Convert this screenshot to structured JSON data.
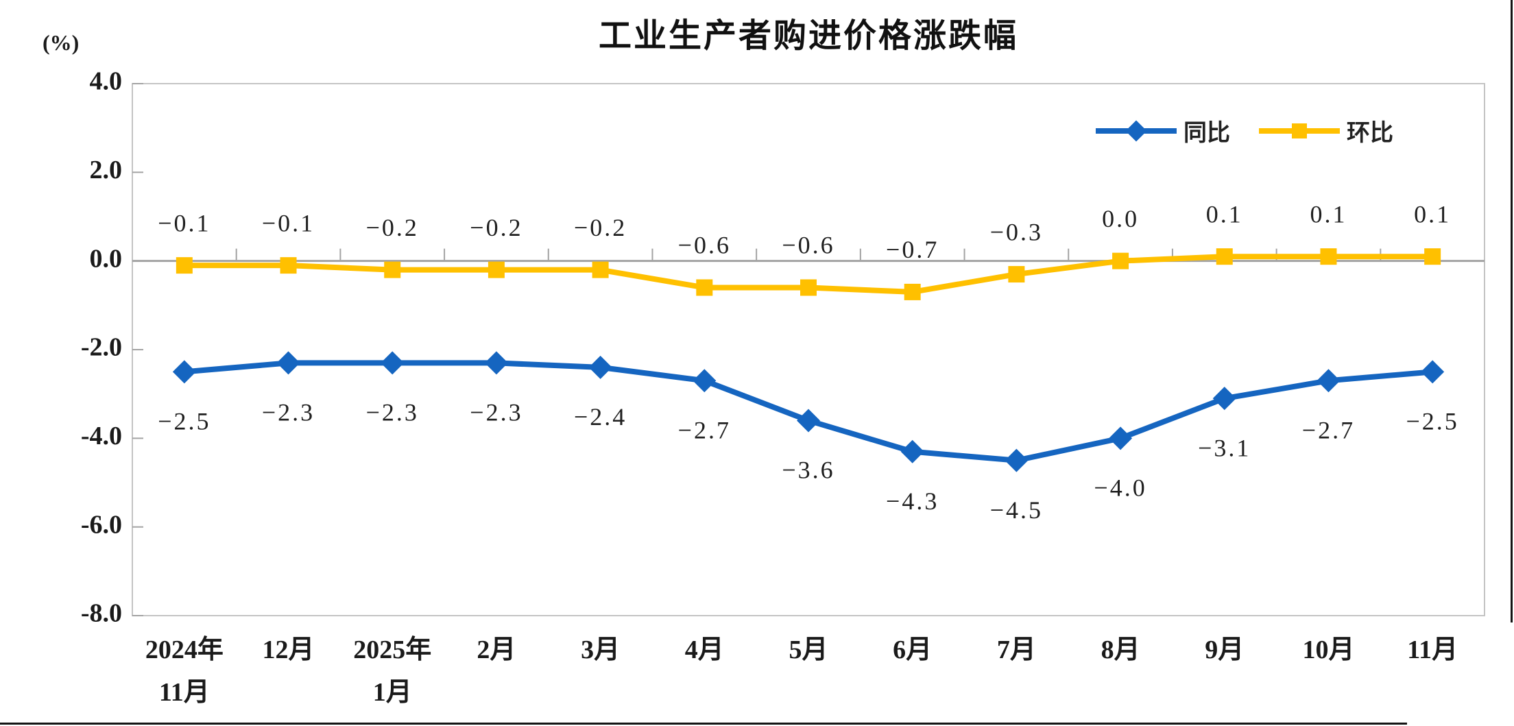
{
  "chart_data": {
    "type": "line",
    "title": "工业生产者购进价格涨跌幅",
    "ylabel": "(%)",
    "categories": [
      "2024年\n11月",
      "12月",
      "2025年\n1月",
      "2月",
      "3月",
      "4月",
      "5月",
      "6月",
      "7月",
      "8月",
      "9月",
      "10月",
      "11月"
    ],
    "series": [
      {
        "key": "yoy",
        "name": "同比",
        "marker": "diamond",
        "color": "#1565c0",
        "values": [
          -2.5,
          -2.3,
          -2.3,
          -2.3,
          -2.4,
          -2.7,
          -3.6,
          -4.3,
          -4.5,
          -4.0,
          -3.1,
          -2.7,
          -2.5
        ],
        "labels": [
          "−2.5",
          "−2.3",
          "−2.3",
          "−2.3",
          "−2.4",
          "−2.7",
          "−3.6",
          "−4.3",
          "−4.5",
          "−4.0",
          "−3.1",
          "−2.7",
          "−2.5"
        ],
        "label_side": "below"
      },
      {
        "key": "mom",
        "name": "环比",
        "marker": "square",
        "color": "#ffc000",
        "values": [
          -0.1,
          -0.1,
          -0.2,
          -0.2,
          -0.2,
          -0.6,
          -0.6,
          -0.7,
          -0.3,
          0.0,
          0.1,
          0.1,
          0.1
        ],
        "labels": [
          "−0.1",
          "−0.1",
          "−0.2",
          "−0.2",
          "−0.2",
          "−0.6",
          "−0.6",
          "−0.7",
          "−0.3",
          "0.0",
          "0.1",
          "0.1",
          "0.1"
        ],
        "label_side": "above"
      }
    ],
    "ylim": [
      -8.0,
      4.0
    ],
    "y_ticks": [
      4.0,
      2.0,
      0.0,
      -2.0,
      -4.0,
      -6.0,
      -8.0
    ],
    "y_tick_labels": [
      "4.0",
      "2.0",
      "0.0",
      "-2.0",
      "-4.0",
      "-6.0",
      "-8.0"
    ],
    "grid": "zero-line-only",
    "legend_position": "top-right-inside",
    "colors": {
      "plot_border": "#c4c4c4",
      "zero_line": "#a3a3a3",
      "tick": "#a3a3a3",
      "text": "#1a1a1a"
    }
  }
}
